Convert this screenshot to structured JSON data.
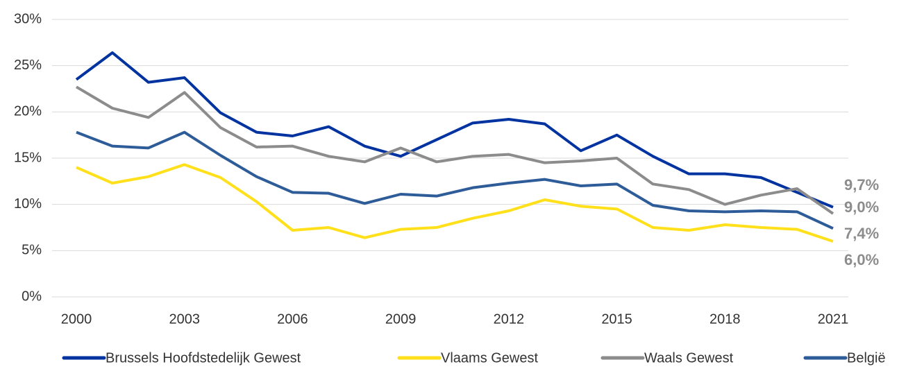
{
  "chart_data": {
    "type": "line",
    "x": [
      2000,
      2001,
      2002,
      2003,
      2004,
      2005,
      2006,
      2007,
      2008,
      2009,
      2010,
      2011,
      2012,
      2013,
      2014,
      2015,
      2016,
      2017,
      2018,
      2019,
      2020,
      2021
    ],
    "xlim": [
      2000,
      2021
    ],
    "xticks": [
      2000,
      2003,
      2006,
      2009,
      2012,
      2015,
      2018,
      2021
    ],
    "ylim": [
      0,
      30
    ],
    "yticks": [
      {
        "value": 0,
        "label": "0%"
      },
      {
        "value": 5,
        "label": "5%"
      },
      {
        "value": 10,
        "label": "10%"
      },
      {
        "value": 15,
        "label": "15%"
      },
      {
        "value": 20,
        "label": "20%"
      },
      {
        "value": 25,
        "label": "25%"
      },
      {
        "value": 30,
        "label": "30%"
      }
    ],
    "grid": true,
    "legend": "bottom",
    "series": [
      {
        "name": "Brussels Hoofdstedelijk Gewest",
        "color": "#0033a0",
        "values": [
          23.5,
          26.4,
          23.2,
          23.7,
          19.9,
          17.8,
          17.4,
          18.4,
          16.3,
          15.2,
          17.0,
          18.8,
          19.2,
          18.7,
          15.8,
          17.5,
          15.2,
          13.3,
          13.3,
          12.9,
          11.3,
          9.7
        ],
        "value_labels": [
          null,
          null,
          null,
          null,
          null,
          null,
          null,
          null,
          null,
          null,
          null,
          null,
          null,
          null,
          null,
          null,
          null,
          null,
          null,
          null,
          null,
          "9,7%"
        ]
      },
      {
        "name": "Vlaams Gewest",
        "color": "#ffe01b",
        "values": [
          14.0,
          12.3,
          13.0,
          14.3,
          12.9,
          10.3,
          7.2,
          7.5,
          6.4,
          7.3,
          7.5,
          8.5,
          9.3,
          10.5,
          9.8,
          9.5,
          7.5,
          7.2,
          7.8,
          7.5,
          7.3,
          6.0
        ],
        "value_labels": [
          null,
          null,
          null,
          null,
          null,
          null,
          null,
          null,
          null,
          null,
          null,
          null,
          null,
          null,
          null,
          null,
          null,
          null,
          null,
          null,
          null,
          "6,0%"
        ]
      },
      {
        "name": "Waals Gewest",
        "color": "#8c8c8c",
        "values": [
          22.7,
          20.4,
          19.4,
          22.1,
          18.3,
          16.2,
          16.3,
          15.2,
          14.6,
          16.1,
          14.6,
          15.2,
          15.4,
          14.5,
          14.7,
          15.0,
          12.2,
          11.6,
          10.0,
          11.0,
          11.7,
          9.0
        ],
        "value_labels": [
          null,
          null,
          null,
          null,
          null,
          null,
          null,
          null,
          null,
          null,
          null,
          null,
          null,
          null,
          null,
          null,
          null,
          null,
          null,
          null,
          null,
          "9,0%"
        ]
      },
      {
        "name": "België",
        "color": "#2e5c99",
        "values": [
          17.8,
          16.3,
          16.1,
          17.8,
          15.3,
          13.0,
          11.3,
          11.2,
          10.1,
          11.1,
          10.9,
          11.8,
          12.3,
          12.7,
          12.0,
          12.2,
          9.9,
          9.3,
          9.2,
          9.3,
          9.2,
          7.4
        ],
        "value_labels": [
          null,
          null,
          null,
          null,
          null,
          null,
          null,
          null,
          null,
          null,
          null,
          null,
          null,
          null,
          null,
          null,
          null,
          null,
          null,
          null,
          null,
          "7,4%"
        ]
      }
    ]
  }
}
